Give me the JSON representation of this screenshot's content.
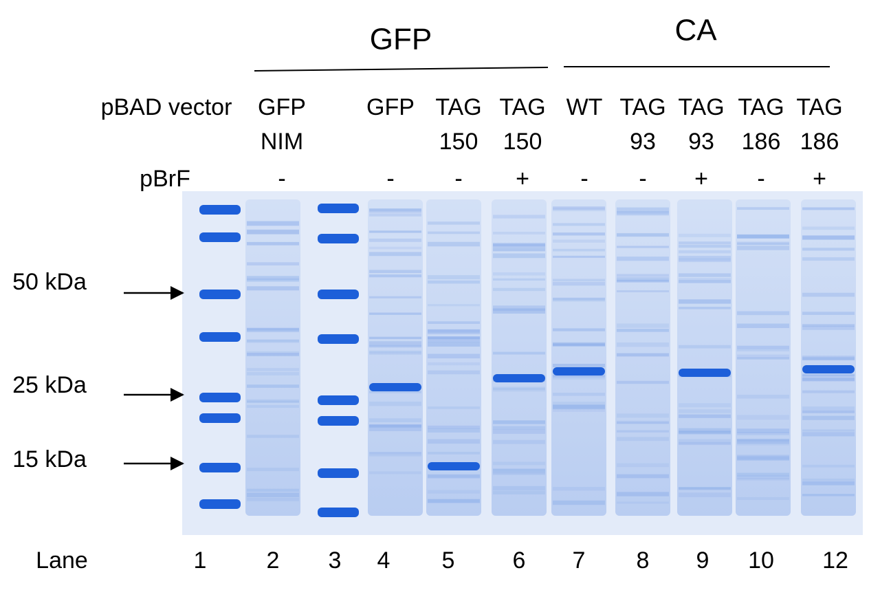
{
  "groups": [
    {
      "label": "GFP"
    },
    {
      "label": "CA"
    }
  ],
  "row_labels": {
    "vector": "pBAD vector",
    "pbrf": "pBrF",
    "lane": "Lane"
  },
  "markers": [
    "50 kDa",
    "25 kDa",
    "15 kDa"
  ],
  "lanes": [
    {
      "number": "1"
    },
    {
      "number": "2",
      "vector": [
        "GFP",
        "NIM"
      ],
      "pbrf": "-"
    },
    {
      "number": "3"
    },
    {
      "number": "4",
      "vector": [
        "GFP"
      ],
      "pbrf": "-"
    },
    {
      "number": "5",
      "vector": [
        "TAG",
        "150"
      ],
      "pbrf": "-"
    },
    {
      "number": "6",
      "vector": [
        "TAG",
        "150"
      ],
      "pbrf": "+"
    },
    {
      "number": "7",
      "vector": [
        "WT"
      ],
      "pbrf": "-"
    },
    {
      "number": "8",
      "vector": [
        "TAG",
        "93"
      ],
      "pbrf": "-"
    },
    {
      "number": "9",
      "vector": [
        "TAG",
        "93"
      ],
      "pbrf": "+"
    },
    {
      "number": "10",
      "vector": [
        "TAG",
        "186"
      ],
      "pbrf": "-"
    },
    {
      "number": "12",
      "vector": [
        "TAG",
        "186"
      ],
      "pbrf": "+"
    }
  ]
}
